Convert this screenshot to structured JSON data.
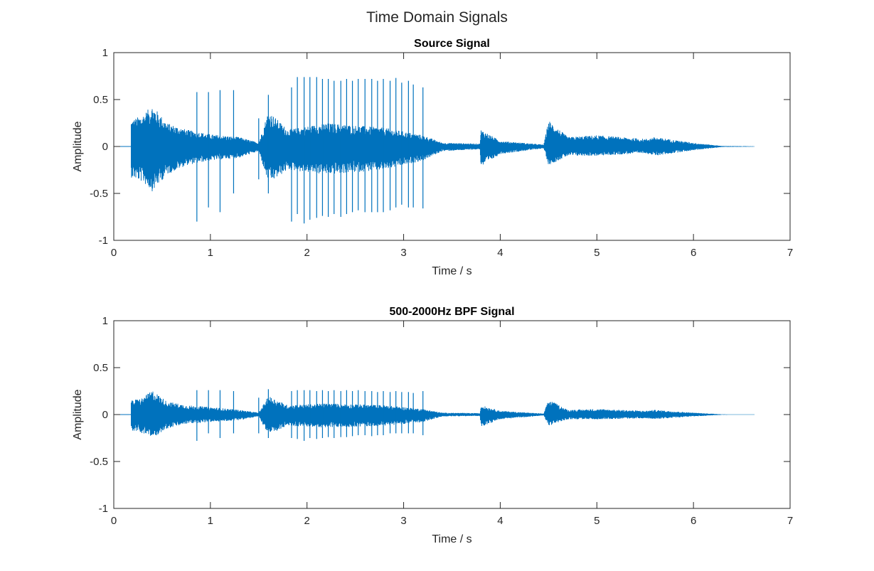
{
  "figure": {
    "title": "Time Domain Signals"
  },
  "chart_data": [
    {
      "type": "line",
      "title": "Source Signal",
      "xlabel": "Time / s",
      "ylabel": "Amplitude",
      "xlim": [
        0,
        7
      ],
      "ylim": [
        -1,
        1
      ],
      "xticks": [
        0,
        1,
        2,
        3,
        4,
        5,
        6,
        7
      ],
      "yticks": [
        1,
        0.5,
        0,
        -0.5,
        -1
      ],
      "color": "#0072BD",
      "grid": false,
      "signal_start": 0.18,
      "signal_end": 6.63,
      "envelope": [
        {
          "t": 0.18,
          "max": 0.28,
          "min": -0.33
        },
        {
          "t": 0.3,
          "max": 0.34,
          "min": -0.38
        },
        {
          "t": 0.4,
          "max": 0.44,
          "min": -0.48
        },
        {
          "t": 0.55,
          "max": 0.25,
          "min": -0.3
        },
        {
          "t": 0.75,
          "max": 0.18,
          "min": -0.2
        },
        {
          "t": 1.0,
          "max": 0.13,
          "min": -0.15
        },
        {
          "t": 1.3,
          "max": 0.1,
          "min": -0.12
        },
        {
          "t": 1.5,
          "max": 0.04,
          "min": -0.05
        },
        {
          "t": 1.6,
          "max": 0.38,
          "min": -0.4
        },
        {
          "t": 1.8,
          "max": 0.18,
          "min": -0.25
        },
        {
          "t": 2.2,
          "max": 0.25,
          "min": -0.3
        },
        {
          "t": 2.8,
          "max": 0.2,
          "min": -0.25
        },
        {
          "t": 3.2,
          "max": 0.12,
          "min": -0.15
        },
        {
          "t": 3.3,
          "max": 0.08,
          "min": -0.1
        },
        {
          "t": 3.4,
          "max": 0.04,
          "min": -0.05
        },
        {
          "t": 3.79,
          "max": 0.03,
          "min": -0.03
        },
        {
          "t": 3.8,
          "max": 0.18,
          "min": -0.22
        },
        {
          "t": 4.0,
          "max": 0.06,
          "min": -0.08
        },
        {
          "t": 4.45,
          "max": 0.02,
          "min": -0.02
        },
        {
          "t": 4.5,
          "max": 0.28,
          "min": -0.2
        },
        {
          "t": 4.7,
          "max": 0.1,
          "min": -0.1
        },
        {
          "t": 5.0,
          "max": 0.12,
          "min": -0.1
        },
        {
          "t": 5.5,
          "max": 0.08,
          "min": -0.07
        },
        {
          "t": 5.6,
          "max": 0.1,
          "min": -0.1
        },
        {
          "t": 6.0,
          "max": 0.04,
          "min": -0.04
        },
        {
          "t": 6.3,
          "max": 0.005,
          "min": -0.005
        },
        {
          "t": 6.63,
          "max": 0.003,
          "min": -0.003
        }
      ],
      "spikes": [
        {
          "t": 0.86,
          "max": 0.58,
          "min": -0.8
        },
        {
          "t": 0.98,
          "max": 0.58,
          "min": -0.65
        },
        {
          "t": 1.1,
          "max": 0.6,
          "min": -0.7
        },
        {
          "t": 1.24,
          "max": 0.6,
          "min": -0.5
        },
        {
          "t": 1.5,
          "max": 0.3,
          "min": -0.35
        },
        {
          "t": 1.6,
          "max": 0.55,
          "min": -0.5
        },
        {
          "t": 1.84,
          "max": 0.63,
          "min": -0.8
        },
        {
          "t": 1.9,
          "max": 0.74,
          "min": -0.72
        },
        {
          "t": 1.97,
          "max": 0.74,
          "min": -0.82
        },
        {
          "t": 2.03,
          "max": 0.74,
          "min": -0.78
        },
        {
          "t": 2.1,
          "max": 0.74,
          "min": -0.76
        },
        {
          "t": 2.16,
          "max": 0.72,
          "min": -0.74
        },
        {
          "t": 2.22,
          "max": 0.72,
          "min": -0.75
        },
        {
          "t": 2.28,
          "max": 0.7,
          "min": -0.72
        },
        {
          "t": 2.35,
          "max": 0.7,
          "min": -0.75
        },
        {
          "t": 2.41,
          "max": 0.72,
          "min": -0.72
        },
        {
          "t": 2.47,
          "max": 0.7,
          "min": -0.7
        },
        {
          "t": 2.53,
          "max": 0.72,
          "min": -0.68
        },
        {
          "t": 2.6,
          "max": 0.72,
          "min": -0.7
        },
        {
          "t": 2.67,
          "max": 0.72,
          "min": -0.7
        },
        {
          "t": 2.73,
          "max": 0.7,
          "min": -0.7
        },
        {
          "t": 2.79,
          "max": 0.72,
          "min": -0.7
        },
        {
          "t": 2.86,
          "max": 0.7,
          "min": -0.68
        },
        {
          "t": 2.92,
          "max": 0.73,
          "min": -0.65
        },
        {
          "t": 2.98,
          "max": 0.68,
          "min": -0.62
        },
        {
          "t": 3.05,
          "max": 0.7,
          "min": -0.65
        },
        {
          "t": 3.1,
          "max": 0.66,
          "min": -0.65
        },
        {
          "t": 3.2,
          "max": 0.63,
          "min": -0.66
        }
      ]
    },
    {
      "type": "line",
      "title": "500-2000Hz BPF Signal",
      "xlabel": "Time / s",
      "ylabel": "Amplitude",
      "xlim": [
        0,
        7
      ],
      "ylim": [
        -1,
        1
      ],
      "xticks": [
        0,
        1,
        2,
        3,
        4,
        5,
        6,
        7
      ],
      "yticks": [
        1,
        0.5,
        0,
        -0.5,
        -1
      ],
      "color": "#0072BD",
      "grid": false,
      "signal_start": 0.18,
      "signal_end": 6.63,
      "envelope": [
        {
          "t": 0.18,
          "max": 0.15,
          "min": -0.17
        },
        {
          "t": 0.3,
          "max": 0.18,
          "min": -0.2
        },
        {
          "t": 0.4,
          "max": 0.26,
          "min": -0.25
        },
        {
          "t": 0.55,
          "max": 0.14,
          "min": -0.15
        },
        {
          "t": 0.75,
          "max": 0.1,
          "min": -0.1
        },
        {
          "t": 1.0,
          "max": 0.08,
          "min": -0.08
        },
        {
          "t": 1.3,
          "max": 0.05,
          "min": -0.06
        },
        {
          "t": 1.5,
          "max": 0.02,
          "min": -0.02
        },
        {
          "t": 1.6,
          "max": 0.2,
          "min": -0.22
        },
        {
          "t": 1.8,
          "max": 0.1,
          "min": -0.12
        },
        {
          "t": 2.2,
          "max": 0.12,
          "min": -0.14
        },
        {
          "t": 2.8,
          "max": 0.1,
          "min": -0.12
        },
        {
          "t": 3.2,
          "max": 0.06,
          "min": -0.08
        },
        {
          "t": 3.3,
          "max": 0.04,
          "min": -0.05
        },
        {
          "t": 3.4,
          "max": 0.02,
          "min": -0.02
        },
        {
          "t": 3.79,
          "max": 0.015,
          "min": -0.015
        },
        {
          "t": 3.8,
          "max": 0.1,
          "min": -0.13
        },
        {
          "t": 4.0,
          "max": 0.04,
          "min": -0.05
        },
        {
          "t": 4.45,
          "max": 0.01,
          "min": -0.01
        },
        {
          "t": 4.5,
          "max": 0.16,
          "min": -0.12
        },
        {
          "t": 4.7,
          "max": 0.05,
          "min": -0.05
        },
        {
          "t": 5.0,
          "max": 0.06,
          "min": -0.05
        },
        {
          "t": 5.5,
          "max": 0.04,
          "min": -0.04
        },
        {
          "t": 5.6,
          "max": 0.05,
          "min": -0.05
        },
        {
          "t": 6.0,
          "max": 0.02,
          "min": -0.02
        },
        {
          "t": 6.3,
          "max": 0.003,
          "min": -0.003
        },
        {
          "t": 6.63,
          "max": 0.002,
          "min": -0.002
        }
      ],
      "spikes": [
        {
          "t": 0.86,
          "max": 0.26,
          "min": -0.28
        },
        {
          "t": 0.98,
          "max": 0.26,
          "min": -0.2
        },
        {
          "t": 1.1,
          "max": 0.26,
          "min": -0.25
        },
        {
          "t": 1.24,
          "max": 0.25,
          "min": -0.2
        },
        {
          "t": 1.5,
          "max": 0.18,
          "min": -0.2
        },
        {
          "t": 1.6,
          "max": 0.27,
          "min": -0.25
        },
        {
          "t": 1.84,
          "max": 0.25,
          "min": -0.25
        },
        {
          "t": 1.9,
          "max": 0.26,
          "min": -0.26
        },
        {
          "t": 1.97,
          "max": 0.26,
          "min": -0.28
        },
        {
          "t": 2.03,
          "max": 0.26,
          "min": -0.25
        },
        {
          "t": 2.1,
          "max": 0.25,
          "min": -0.26
        },
        {
          "t": 2.16,
          "max": 0.26,
          "min": -0.25
        },
        {
          "t": 2.22,
          "max": 0.25,
          "min": -0.24
        },
        {
          "t": 2.28,
          "max": 0.26,
          "min": -0.25
        },
        {
          "t": 2.35,
          "max": 0.25,
          "min": -0.24
        },
        {
          "t": 2.41,
          "max": 0.26,
          "min": -0.24
        },
        {
          "t": 2.47,
          "max": 0.25,
          "min": -0.23
        },
        {
          "t": 2.53,
          "max": 0.26,
          "min": -0.22
        },
        {
          "t": 2.6,
          "max": 0.25,
          "min": -0.22
        },
        {
          "t": 2.67,
          "max": 0.25,
          "min": -0.23
        },
        {
          "t": 2.73,
          "max": 0.24,
          "min": -0.22
        },
        {
          "t": 2.79,
          "max": 0.25,
          "min": -0.22
        },
        {
          "t": 2.86,
          "max": 0.24,
          "min": -0.2
        },
        {
          "t": 2.92,
          "max": 0.25,
          "min": -0.2
        },
        {
          "t": 2.98,
          "max": 0.24,
          "min": -0.2
        },
        {
          "t": 3.05,
          "max": 0.24,
          "min": -0.2
        },
        {
          "t": 3.1,
          "max": 0.23,
          "min": -0.2
        },
        {
          "t": 3.2,
          "max": 0.25,
          "min": -0.22
        }
      ]
    }
  ]
}
